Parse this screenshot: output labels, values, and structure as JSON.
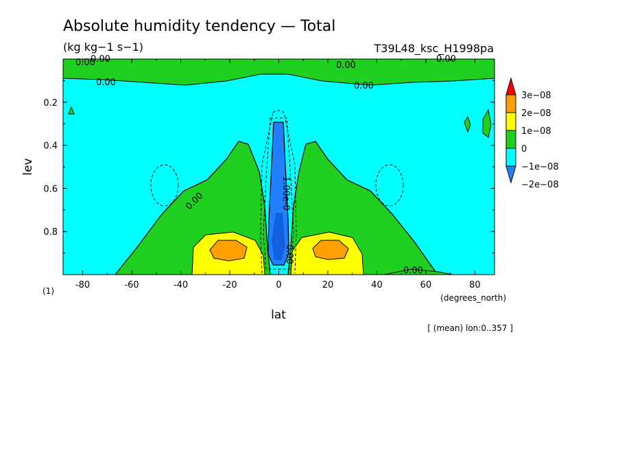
{
  "chart_data": {
    "type": "heatmap",
    "subtype": "filled-contour",
    "title": "Absolute humidity tendency — Total",
    "units": "(kg kg−1 s−1)",
    "experiment": "T39L48_ksc_H1998pa",
    "xlabel": "lat",
    "x_units": "(degrees_north)",
    "ylabel": "lev",
    "y_units": "(1)",
    "xlim": [
      -88,
      88
    ],
    "ylim": [
      1.0,
      0.0
    ],
    "x_ticks": [
      -80,
      -60,
      -40,
      -20,
      0,
      20,
      40,
      60,
      80
    ],
    "y_ticks": [
      0.2,
      0.4,
      0.6,
      0.8
    ],
    "footnote": "[ (mean) lon:0..357 ]",
    "colorbar": {
      "labels": [
        "3e−08",
        "2e−08",
        "1e−08",
        "0",
        "−1e−08",
        "−2e−08"
      ],
      "levels": [
        -2e-08,
        -1e-08,
        0,
        1e-08,
        2e-08,
        3e-08
      ],
      "colors": [
        "#2080ff",
        "#00ffff",
        "#20d020",
        "#ffff00",
        "#ffa000",
        "#ff0000"
      ],
      "extend": "both"
    },
    "contour_labels": [
      "0.00",
      "0.00",
      "0.00",
      "0.00",
      "0.00",
      "0.00",
      "0.00",
      "0.00",
      "-1.00e-0",
      "0.00"
    ],
    "description_regions": [
      {
        "level": "-2e-08 to -1e-08",
        "lat_range": [
          -4,
          4
        ],
        "lev_range": [
          0.3,
          0.96
        ]
      },
      {
        "level": "2e-08 to 3e-08",
        "lat_range": [
          -26,
          -14
        ],
        "lev_range": [
          0.84,
          0.93
        ]
      },
      {
        "level": "2e-08 to 3e-08",
        "lat_range": [
          14,
          26
        ],
        "lev_range": [
          0.84,
          0.93
        ]
      },
      {
        "level": "1e-08 to 2e-08",
        "lat_range": [
          -36,
          -4
        ],
        "lev_range": [
          0.78,
          1.0
        ]
      },
      {
        "level": "1e-08 to 2e-08",
        "lat_range": [
          4,
          36
        ],
        "lev_range": [
          0.78,
          1.0
        ]
      },
      {
        "level": "0 to 1e-08",
        "lat_range": [
          -50,
          50
        ],
        "lev_range": [
          0.4,
          1.0
        ]
      },
      {
        "level": "0 to 1e-08",
        "lat_range": [
          -88,
          88
        ],
        "lev_range": [
          0.0,
          0.1
        ]
      }
    ]
  }
}
